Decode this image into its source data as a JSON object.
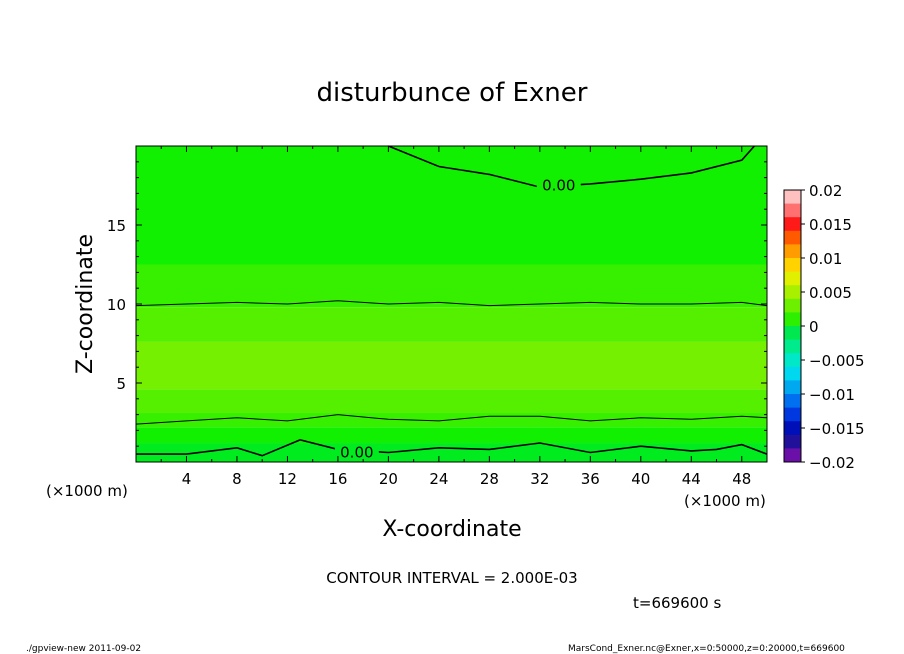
{
  "chart_data": {
    "type": "heatmap",
    "title": "disturbunce of Exner",
    "xlabel": "X-coordinate",
    "ylabel": "Z-coordinate",
    "x_unit": "(×1000 m)",
    "z_unit": "(×1000 m)",
    "xlim": [
      0,
      50
    ],
    "ylim": [
      0,
      20
    ],
    "x_ticks": [
      "4",
      "8",
      "12",
      "16",
      "20",
      "24",
      "28",
      "32",
      "36",
      "40",
      "44",
      "48"
    ],
    "y_ticks": [
      "5",
      "10",
      "15"
    ],
    "contour_labels": [
      "0.00",
      "0.00"
    ],
    "contour_interval_text": "CONTOUR INTERVAL = 2.000E-03",
    "colorbar": {
      "labels": [
        "0.02",
        "0.015",
        "0.01",
        "0.005",
        "0",
        "−0.005",
        "−0.01",
        "−0.015",
        "−0.02"
      ],
      "colors": [
        "#ffc0c0",
        "#ff7070",
        "#ff1a1a",
        "#ff5a00",
        "#ff9c00",
        "#ffd200",
        "#e0f000",
        "#a8f000",
        "#6cf000",
        "#2cf000",
        "#00e850",
        "#00ec8c",
        "#00e8c8",
        "#00d8f0",
        "#00a8f0",
        "#0070f0",
        "#0038e0",
        "#0010b8",
        "#20109a",
        "#6a10a8"
      ]
    },
    "bands": [
      {
        "z_top": 20.0,
        "color": "#11f000"
      },
      {
        "z_top": 12.5,
        "color": "#37f000"
      },
      {
        "z_top": 9.8,
        "color": "#55f000"
      },
      {
        "z_top": 7.6,
        "color": "#74f000"
      },
      {
        "z_top": 4.6,
        "color": "#55f000"
      },
      {
        "z_top": 3.1,
        "color": "#37f000"
      },
      {
        "z_top": 2.2,
        "color": "#11f000"
      },
      {
        "z_top": 1.2,
        "color": "#00ec1e"
      }
    ],
    "contours": [
      {
        "x": [
          20,
          24,
          28,
          32,
          36,
          40,
          44,
          48,
          49
        ],
        "z": [
          20.0,
          18.7,
          18.2,
          17.4,
          17.6,
          17.9,
          18.3,
          19.1,
          20.0
        ]
      },
      {
        "x": [
          0,
          4,
          8,
          12,
          16,
          20,
          24,
          28,
          32,
          36,
          40,
          44,
          48,
          50
        ],
        "z": [
          9.9,
          10.0,
          10.1,
          10.0,
          10.2,
          10.0,
          10.1,
          9.9,
          10.0,
          10.1,
          10.0,
          10.0,
          10.1,
          9.9
        ]
      },
      {
        "x": [
          0,
          4,
          8,
          12,
          16,
          20,
          24,
          28,
          32,
          36,
          40,
          44,
          48,
          50
        ],
        "z": [
          2.4,
          2.6,
          2.8,
          2.6,
          3.0,
          2.7,
          2.6,
          2.9,
          2.9,
          2.6,
          2.8,
          2.7,
          2.9,
          2.8
        ]
      },
      {
        "x": [
          0,
          4,
          8,
          10,
          13,
          16,
          20,
          24,
          28,
          32,
          36,
          40,
          44,
          46,
          48,
          50
        ],
        "z": [
          0.5,
          0.5,
          0.9,
          0.4,
          1.4,
          0.8,
          0.6,
          0.9,
          0.8,
          1.2,
          0.6,
          1.0,
          0.7,
          0.8,
          1.1,
          0.5
        ]
      }
    ]
  },
  "footer": {
    "time_label": "t=669600 s",
    "left_note": "./gpview-new  2011-09-02",
    "right_note": "MarsCond_Exner.nc@Exner,x=0:50000,z=0:20000,t=669600"
  }
}
